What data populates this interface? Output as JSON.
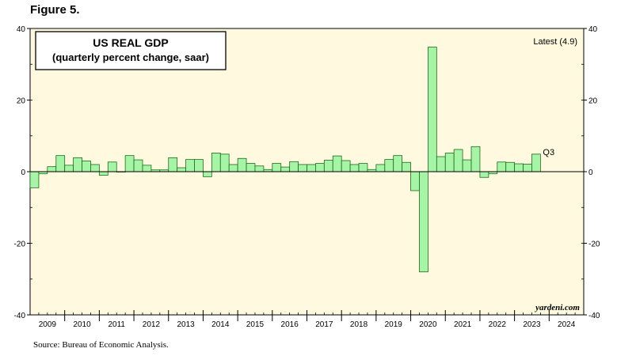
{
  "figure_label": "Figure 5.",
  "source": "Source: Bureau of Economic Analysis.",
  "watermark": "yardeni.com",
  "colors": {
    "plot_bg": "#fffadf",
    "bar_fill": "#a6f5a6",
    "bar_stroke": "#1c6b1c"
  },
  "chart_data": {
    "type": "bar",
    "title": "US REAL GDP",
    "subtitle": "(quarterly percent change, saar)",
    "annotation_latest": "Latest (4.9)",
    "annotation_last_bar": "Q3",
    "ylim": [
      -40,
      40
    ],
    "yticks": [
      -40,
      -20,
      0,
      20,
      40
    ],
    "yticks_right": [
      -40,
      -20,
      0,
      20,
      40
    ],
    "grid": false,
    "x_start": "2009 Q1",
    "x_end": "2024 Q4",
    "year_labels": [
      "2009",
      "2010",
      "2011",
      "2012",
      "2013",
      "2014",
      "2015",
      "2016",
      "2017",
      "2018",
      "2019",
      "2020",
      "2021",
      "2022",
      "2023",
      "2024"
    ],
    "categories": [
      "2009 Q1",
      "2009 Q2",
      "2009 Q3",
      "2009 Q4",
      "2010 Q1",
      "2010 Q2",
      "2010 Q3",
      "2010 Q4",
      "2011 Q1",
      "2011 Q2",
      "2011 Q3",
      "2011 Q4",
      "2012 Q1",
      "2012 Q2",
      "2012 Q3",
      "2012 Q4",
      "2013 Q1",
      "2013 Q2",
      "2013 Q3",
      "2013 Q4",
      "2014 Q1",
      "2014 Q2",
      "2014 Q3",
      "2014 Q4",
      "2015 Q1",
      "2015 Q2",
      "2015 Q3",
      "2015 Q4",
      "2016 Q1",
      "2016 Q2",
      "2016 Q3",
      "2016 Q4",
      "2017 Q1",
      "2017 Q2",
      "2017 Q3",
      "2017 Q4",
      "2018 Q1",
      "2018 Q2",
      "2018 Q3",
      "2018 Q4",
      "2019 Q1",
      "2019 Q2",
      "2019 Q3",
      "2019 Q4",
      "2020 Q1",
      "2020 Q2",
      "2020 Q3",
      "2020 Q4",
      "2021 Q1",
      "2021 Q2",
      "2021 Q3",
      "2021 Q4",
      "2022 Q1",
      "2022 Q2",
      "2022 Q3",
      "2022 Q4",
      "2023 Q1",
      "2023 Q2",
      "2023 Q3"
    ],
    "values": [
      -4.5,
      -0.6,
      1.4,
      4.5,
      1.8,
      3.9,
      3.0,
      2.0,
      -1.0,
      2.7,
      0.0,
      4.5,
      3.3,
      1.8,
      0.5,
      0.5,
      3.9,
      1.1,
      3.4,
      3.4,
      -1.4,
      5.2,
      4.9,
      2.0,
      3.7,
      2.3,
      1.6,
      0.6,
      2.3,
      1.3,
      2.8,
      2.0,
      2.0,
      2.3,
      3.2,
      4.4,
      3.1,
      2.0,
      2.3,
      0.6,
      2.0,
      3.4,
      4.5,
      2.6,
      -5.3,
      -28.0,
      34.8,
      4.2,
      5.2,
      6.2,
      3.3,
      7.0,
      -1.6,
      -0.6,
      2.7,
      2.6,
      2.2,
      2.1,
      4.9
    ]
  }
}
